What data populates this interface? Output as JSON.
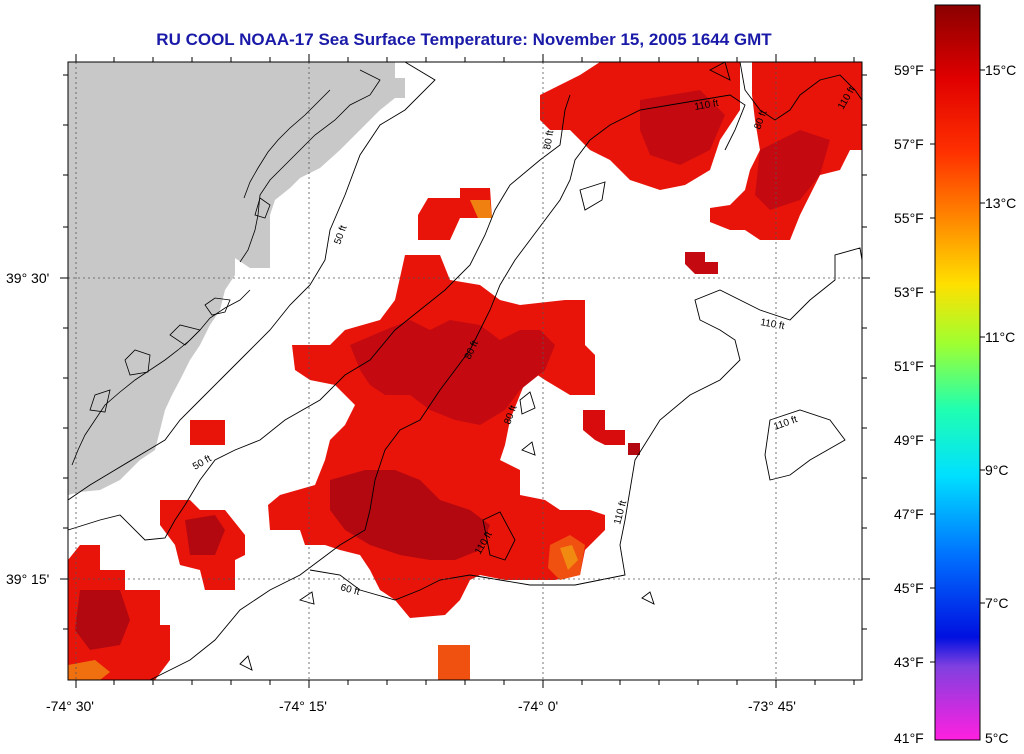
{
  "title": "RU COOL  NOAA-17  Sea Surface Temperature:  November 15, 2005 1644 GMT",
  "x_ticks": [
    "-74° 30'",
    "-74° 15'",
    "-74° 0'",
    "-73° 45'"
  ],
  "y_ticks": [
    "39° 30'",
    "39° 15'"
  ],
  "contour_labels": [
    "50 ft",
    "50 ft",
    "60 ft",
    "80 ft",
    "80 ft",
    "80 ft",
    "110 ft",
    "110 ft",
    "110 ft",
    "110 ft",
    "110 ft",
    "110 ft",
    "80 ft"
  ],
  "colorbar": {
    "fahrenheit": [
      "59°F",
      "57°F",
      "55°F",
      "53°F",
      "51°F",
      "49°F",
      "47°F",
      "45°F",
      "43°F",
      "41°F"
    ],
    "celsius": [
      "15°C",
      "13°C",
      "11°C",
      "9°C",
      "7°C",
      "5°C"
    ]
  },
  "colors": {
    "title": "#1a1aa8",
    "land": "#c8c8c8",
    "sst_warm": "#e8140a",
    "sst_hot": "#b40810",
    "sst_orange": "#f07010"
  }
}
